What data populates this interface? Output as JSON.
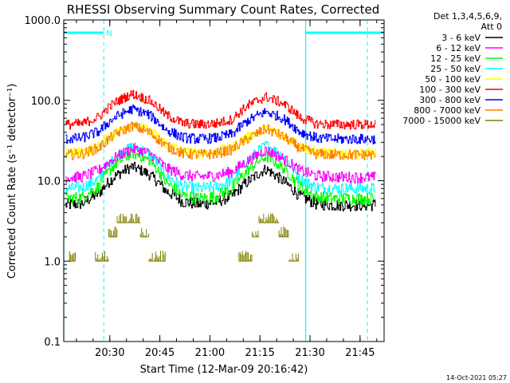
{
  "chart_data": {
    "type": "line",
    "title": "RHESSI Observing Summary Count Rates, Corrected",
    "xlabel": "Start Time (12-Mar-09 20:16:42)",
    "ylabel": "Corrected Count Rate (s⁻¹ detector⁻¹)",
    "yscale": "log",
    "ylim": [
      0.1,
      1000
    ],
    "xlim_minutes_after_start": [
      -0.5,
      95.5
    ],
    "x_tick_labels": [
      "20:30",
      "20:45",
      "21:00",
      "21:15",
      "21:30",
      "21:45"
    ],
    "x_tick_minutes_after_start": [
      13.3,
      28.3,
      43.3,
      58.3,
      73.3,
      88.3
    ],
    "y_tick_labels": [
      "0.1",
      "1.0",
      "10.0",
      "100.0",
      "1000.0"
    ],
    "y_tick_values": [
      0.1,
      1,
      10,
      100,
      1000
    ],
    "legend_header": [
      "Det 1,3,4,5,6,9,",
      "Att 0"
    ],
    "legend_position": "right",
    "night_marker_label": "N",
    "night_marker_color": "#00ffff",
    "night_intervals_minutes": [
      [
        -0.5,
        11.5
      ],
      [
        72.0,
        95.5
      ]
    ],
    "dashed_marker_minutes": [
      11.5,
      72.0,
      90.5
    ],
    "solid_marker_minutes": [
      -0.5,
      72.0
    ],
    "time_sample_minutes": [
      0,
      5,
      10,
      15,
      20,
      25,
      30,
      35,
      40,
      45,
      50,
      55,
      60,
      65,
      70,
      75,
      80,
      85,
      90,
      95
    ],
    "series": [
      {
        "name": "3 - 6 keV",
        "color": "#000000",
        "values": [
          5,
          5.2,
          7,
          11.5,
          15,
          12,
          7.5,
          5.5,
          5.1,
          5.4,
          6.5,
          10,
          14,
          10,
          6.5,
          5.2,
          5,
          5,
          5,
          5
        ]
      },
      {
        "name": "6 - 12 keV",
        "color": "#ff00ff",
        "values": [
          11,
          11.2,
          13.5,
          19.5,
          25,
          22,
          14.5,
          11.8,
          11.2,
          11.6,
          13,
          18,
          24,
          19,
          13.5,
          11.5,
          11.2,
          11,
          11,
          11
        ]
      },
      {
        "name": "12 - 25 keV",
        "color": "#00ff00",
        "values": [
          6,
          6.2,
          8.5,
          16,
          22,
          18,
          9.5,
          6.5,
          6,
          6.4,
          8,
          14,
          20,
          14.5,
          8.5,
          6.3,
          6,
          6,
          6,
          6
        ]
      },
      {
        "name": "25 - 50 keV",
        "color": "#00ffff",
        "values": [
          8,
          8.2,
          10.5,
          19.5,
          27,
          22,
          11.5,
          8.5,
          8,
          8.4,
          10,
          18,
          28,
          20,
          10.5,
          8.3,
          8,
          8,
          8,
          8
        ]
      },
      {
        "name": "50 - 100 keV",
        "color": "#ffff00",
        "values": [
          22,
          22.5,
          27,
          40,
          50,
          42,
          29,
          23,
          22,
          22.8,
          26,
          36,
          45,
          37,
          27,
          22.5,
          22,
          22,
          22,
          22
        ]
      },
      {
        "name": "100 - 300 keV",
        "color": "#ff0000",
        "values": [
          50,
          51,
          62,
          95,
          120,
          100,
          66,
          52,
          50,
          51.5,
          58,
          88,
          110,
          92,
          62,
          51,
          50,
          50,
          50,
          50
        ]
      },
      {
        "name": "300 - 800 keV",
        "color": "#0000ff",
        "values": [
          33,
          34,
          41,
          62,
          78,
          66,
          43,
          34.5,
          33,
          34,
          38,
          57,
          72,
          60,
          41,
          34,
          33,
          33,
          33,
          33
        ]
      },
      {
        "name": "800 - 7000 keV",
        "color": "#ff8000",
        "values": [
          21,
          21.5,
          25.5,
          38,
          48,
          40,
          27,
          21.8,
          21,
          21.7,
          24.5,
          34,
          44,
          35.5,
          25.5,
          21.5,
          21,
          21,
          21,
          21
        ]
      },
      {
        "name": "7000 - 15000 keV",
        "color": "#808000",
        "blocks": [
          {
            "x0": 1.2,
            "x1": 3.0,
            "level": 1
          },
          {
            "x0": 9.0,
            "x1": 13.0,
            "level": 1
          },
          {
            "x0": 13.0,
            "x1": 15.5,
            "level": 2
          },
          {
            "x0": 15.5,
            "x1": 22.5,
            "level": 3
          },
          {
            "x0": 22.5,
            "x1": 25.0,
            "level": 2
          },
          {
            "x0": 25.0,
            "x1": 30.0,
            "level": 1
          },
          {
            "x0": 52.0,
            "x1": 56.0,
            "level": 1
          },
          {
            "x0": 56.0,
            "x1": 58.0,
            "level": 2
          },
          {
            "x0": 58.0,
            "x1": 64.0,
            "level": 3
          },
          {
            "x0": 64.0,
            "x1": 67.0,
            "level": 2
          },
          {
            "x0": 67.0,
            "x1": 70.0,
            "level": 1
          }
        ]
      }
    ]
  },
  "footer_date": "14-Oct-2021 05:27"
}
